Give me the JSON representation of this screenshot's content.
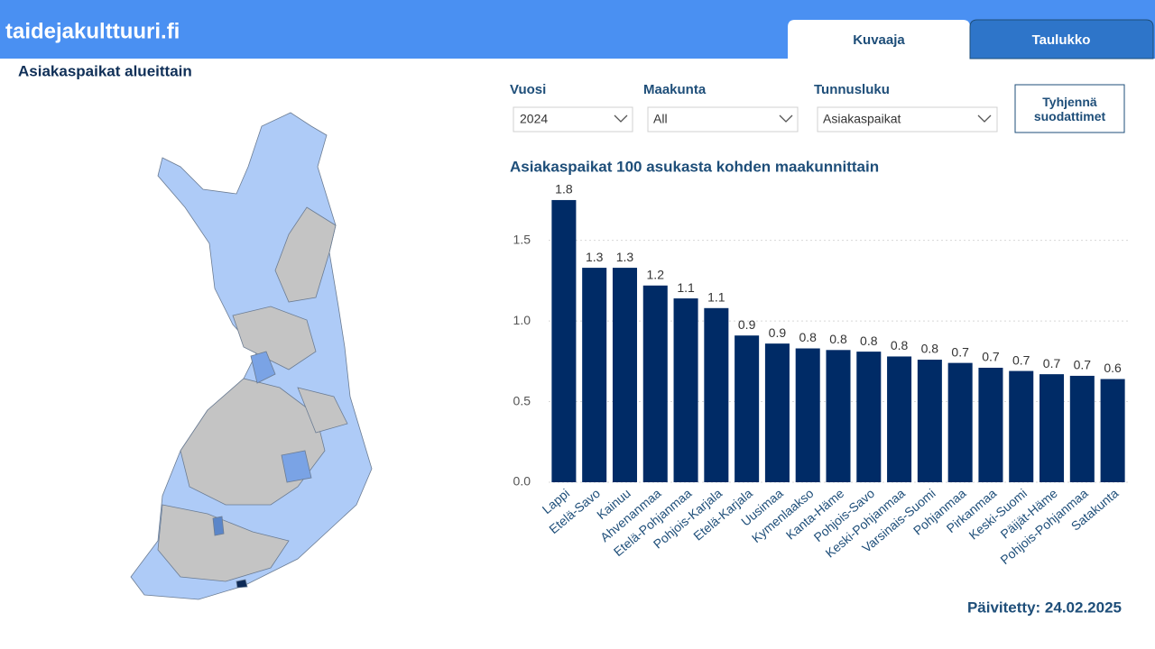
{
  "header": {
    "site": "taidejakulttuuri.fi",
    "tabs": [
      "Kuvaaja",
      "Taulukko"
    ]
  },
  "map": {
    "title": "Asiakaspaikat alueittain"
  },
  "filters": [
    {
      "label": "Vuosi",
      "value": "2024"
    },
    {
      "label": "Maakunta",
      "value": "All"
    },
    {
      "label": "Tunnusluku",
      "value": "Asiakaspaikat"
    }
  ],
  "clear_button": "Tyhjennä suodattimet",
  "chart_data": {
    "type": "bar",
    "title": "Asiakaspaikat 100 asukasta kohden maakunnittain",
    "categories": [
      "Lappi",
      "Etelä-Savo",
      "Kainuu",
      "Ahvenanmaa",
      "Etelä-Pohjanmaa",
      "Pohjois-Karjala",
      "Etelä-Karjala",
      "Uusimaa",
      "Kymenlaakso",
      "Kanta-Häme",
      "Pohjois-Savo",
      "Keski-Pohjanmaa",
      "Varsinais-Suomi",
      "Pohjanmaa",
      "Pirkanmaa",
      "Keski-Suomi",
      "Päijät-Häme",
      "Pohjois-Pohjanmaa",
      "Satakunta"
    ],
    "values": [
      1.75,
      1.33,
      1.33,
      1.22,
      1.14,
      1.08,
      0.91,
      0.86,
      0.83,
      0.82,
      0.81,
      0.78,
      0.76,
      0.74,
      0.71,
      0.69,
      0.67,
      0.66,
      0.64
    ],
    "value_labels": [
      "1.8",
      "1.3",
      "1.3",
      "1.2",
      "1.1",
      "1.1",
      "0.9",
      "0.9",
      "0.8",
      "0.8",
      "0.8",
      "0.8",
      "0.8",
      "0.7",
      "0.7",
      "0.7",
      "0.7",
      "0.7",
      "0.6"
    ],
    "color": "#002b66",
    "ylim": [
      0,
      1.8
    ],
    "yticks": [
      {
        "value": 0,
        "label": "0.0"
      },
      0.5,
      {
        "value": 1,
        "label": "1.0"
      },
      1.5
    ],
    "grid": true
  },
  "footer": "Päivitetty: 24.02.2025"
}
